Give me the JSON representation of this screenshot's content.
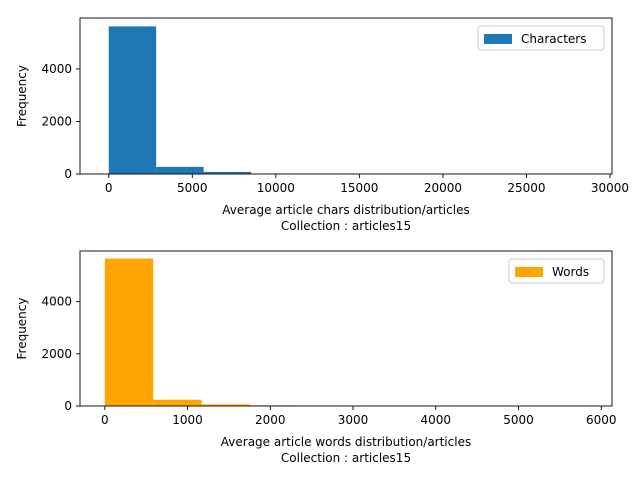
{
  "chart_data": [
    {
      "type": "histogram",
      "xlabel": "Average article chars distribution/articles",
      "subtitle": "Collection : articles15",
      "ylabel": "Frequency",
      "xlim": [
        -1720,
        30120
      ],
      "ylim": [
        0,
        5940
      ],
      "xticks": [
        0,
        5000,
        10000,
        15000,
        20000,
        25000,
        30000
      ],
      "xtick_labels": [
        "0",
        "5000",
        "10000",
        "15000",
        "20000",
        "25000",
        "30000"
      ],
      "yticks": [
        0,
        2000,
        4000
      ],
      "ytick_labels": [
        "0",
        "2000",
        "4000"
      ],
      "legend_position": "top-right",
      "grid": false,
      "series": [
        {
          "name": "Characters",
          "color": "#1f77b4",
          "bins": [
            [
              0,
              2840,
              5620
            ],
            [
              2840,
              5680,
              270
            ],
            [
              5680,
              8520,
              80
            ],
            [
              8520,
              11360,
              15
            ],
            [
              11360,
              14200,
              8
            ],
            [
              14200,
              17040,
              5
            ],
            [
              17040,
              19880,
              3
            ],
            [
              19880,
              22720,
              2
            ],
            [
              22720,
              25560,
              2
            ],
            [
              25560,
              28400,
              3
            ]
          ]
        }
      ]
    },
    {
      "type": "histogram",
      "xlabel": "Average article words distribution/articles",
      "subtitle": "Collection : articles15",
      "ylabel": "Frequency",
      "xlim": [
        -300,
        6130
      ],
      "ylim": [
        0,
        5940
      ],
      "xticks": [
        0,
        1000,
        2000,
        3000,
        4000,
        5000,
        6000
      ],
      "xtick_labels": [
        "0",
        "1000",
        "2000",
        "3000",
        "4000",
        "5000",
        "6000"
      ],
      "yticks": [
        0,
        2000,
        4000
      ],
      "ytick_labels": [
        "0",
        "2000",
        "4000"
      ],
      "legend_position": "top-right",
      "grid": false,
      "series": [
        {
          "name": "Words",
          "color": "#ffa500",
          "bins": [
            [
              0,
              585,
              5650
            ],
            [
              585,
              1170,
              240
            ],
            [
              1170,
              1755,
              60
            ],
            [
              1755,
              2340,
              25
            ],
            [
              2340,
              2925,
              15
            ],
            [
              2925,
              3510,
              10
            ],
            [
              3510,
              4095,
              12
            ],
            [
              4095,
              4680,
              3
            ],
            [
              4680,
              5265,
              2
            ],
            [
              5265,
              5850,
              20
            ]
          ]
        }
      ]
    }
  ]
}
